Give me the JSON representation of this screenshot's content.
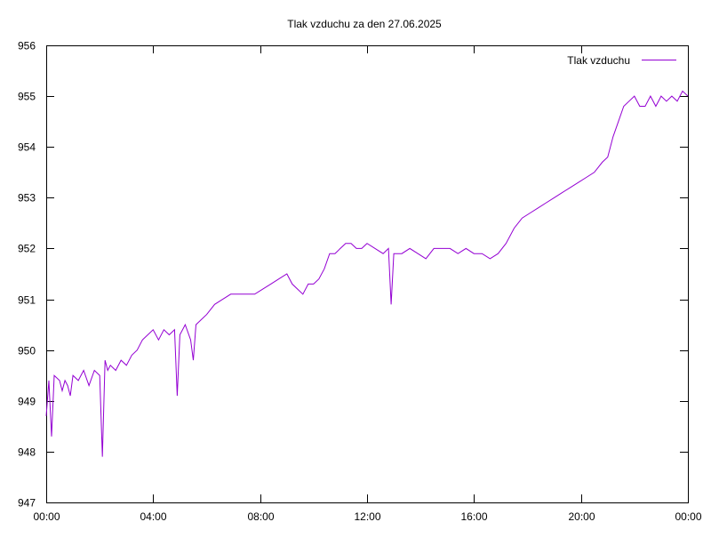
{
  "chart_data": {
    "type": "line",
    "title": "Tlak vzduchu za den 27.06.2025",
    "xlabel": "",
    "ylabel": "",
    "x_ticks": [
      "00:00",
      "04:00",
      "08:00",
      "12:00",
      "16:00",
      "20:00",
      "00:00"
    ],
    "xlim_hours": [
      0,
      24
    ],
    "ylim": [
      947,
      956
    ],
    "y_ticks": [
      947,
      948,
      949,
      950,
      951,
      952,
      953,
      954,
      955,
      956
    ],
    "grid": false,
    "legend_position": "top-right",
    "series": [
      {
        "name": "Tlak vzduchu",
        "color": "#9400d3",
        "x": [
          0.0,
          0.1,
          0.2,
          0.3,
          0.5,
          0.6,
          0.7,
          0.8,
          0.9,
          1.0,
          1.2,
          1.4,
          1.6,
          1.8,
          2.0,
          2.1,
          2.2,
          2.3,
          2.4,
          2.6,
          2.8,
          3.0,
          3.2,
          3.4,
          3.6,
          3.8,
          4.0,
          4.2,
          4.4,
          4.6,
          4.8,
          4.9,
          5.0,
          5.2,
          5.4,
          5.5,
          5.6,
          5.8,
          6.0,
          6.3,
          6.6,
          6.9,
          7.2,
          7.5,
          7.8,
          8.1,
          8.4,
          8.7,
          9.0,
          9.2,
          9.4,
          9.6,
          9.8,
          10.0,
          10.2,
          10.4,
          10.6,
          10.8,
          11.0,
          11.2,
          11.4,
          11.6,
          11.8,
          12.0,
          12.3,
          12.6,
          12.8,
          12.9,
          13.0,
          13.3,
          13.6,
          13.9,
          14.2,
          14.5,
          14.8,
          15.1,
          15.4,
          15.7,
          16.0,
          16.3,
          16.6,
          16.9,
          17.2,
          17.5,
          17.8,
          18.1,
          18.4,
          18.7,
          19.0,
          19.3,
          19.6,
          19.9,
          20.2,
          20.5,
          20.8,
          21.0,
          21.2,
          21.4,
          21.6,
          21.8,
          22.0,
          22.2,
          22.4,
          22.6,
          22.8,
          23.0,
          23.2,
          23.4,
          23.6,
          23.8,
          24.0
        ],
        "y": [
          948.7,
          949.4,
          948.3,
          949.5,
          949.4,
          949.2,
          949.4,
          949.3,
          949.1,
          949.5,
          949.4,
          949.6,
          949.3,
          949.6,
          949.5,
          947.9,
          949.8,
          949.6,
          949.7,
          949.6,
          949.8,
          949.7,
          949.9,
          950.0,
          950.2,
          950.3,
          950.4,
          950.2,
          950.4,
          950.3,
          950.4,
          949.1,
          950.3,
          950.5,
          950.2,
          949.8,
          950.5,
          950.6,
          950.7,
          950.9,
          951.0,
          951.1,
          951.1,
          951.1,
          951.1,
          951.2,
          951.3,
          951.4,
          951.5,
          951.3,
          951.2,
          951.1,
          951.3,
          951.3,
          951.4,
          951.6,
          951.9,
          951.9,
          952.0,
          952.1,
          952.1,
          952.0,
          952.0,
          952.1,
          952.0,
          951.9,
          952.0,
          950.9,
          951.9,
          951.9,
          952.0,
          951.9,
          951.8,
          952.0,
          952.0,
          952.0,
          951.9,
          952.0,
          951.9,
          951.9,
          951.8,
          951.9,
          952.1,
          952.4,
          952.6,
          952.7,
          952.8,
          952.9,
          953.0,
          953.1,
          953.2,
          953.3,
          953.4,
          953.5,
          953.7,
          953.8,
          954.2,
          954.5,
          954.8,
          954.9,
          955.0,
          954.8,
          954.8,
          955.0,
          954.8,
          955.0,
          954.9,
          955.0,
          954.9,
          955.1,
          955.0
        ]
      }
    ]
  }
}
